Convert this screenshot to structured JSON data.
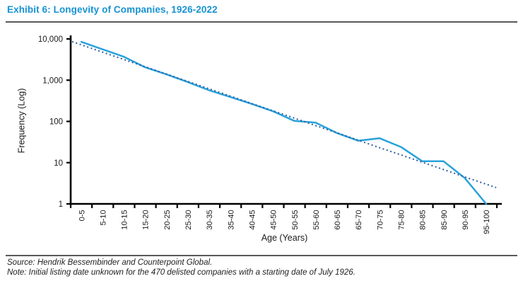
{
  "header": {
    "title": "Exhibit 6: Longevity of Companies, 1926-2022"
  },
  "footer": {
    "source": "Source: Hendrik Bessembinder and Counterpoint Global.",
    "note": "Note: Initial listing date unknown for the 470 delisted companies with a starting date of July 1926."
  },
  "colors": {
    "title": "#1793d3",
    "axis": "#000000",
    "rule": "#595959",
    "text": "#1a1a1a"
  },
  "chart_data": {
    "type": "line",
    "title": "Exhibit 6: Longevity of Companies, 1926-2022",
    "xlabel": "Age (Years)",
    "ylabel": "Frequency (Log)",
    "y_scale": "log",
    "ylim": [
      1,
      10000
    ],
    "grid": false,
    "legend": "none",
    "y_tick_labels": [
      "10,000",
      "1,000",
      "100",
      "10",
      "1"
    ],
    "y_tick_values": [
      10000,
      1000,
      100,
      10,
      1
    ],
    "categories": [
      "0-5",
      "5-10",
      "10-15",
      "15-20",
      "20-25",
      "25-30",
      "30-35",
      "35-40",
      "40-45",
      "45-50",
      "50-55",
      "55-60",
      "60-65",
      "65-70",
      "70-75",
      "75-80",
      "80-85",
      "85-90",
      "90-95",
      "95-100"
    ],
    "series": [
      {
        "name": "frequency",
        "style": "solid",
        "color": "#29a2db",
        "values": [
          8500,
          5600,
          3700,
          2050,
          1380,
          900,
          570,
          390,
          265,
          176,
          103,
          93,
          52,
          34,
          39,
          24,
          10.8,
          10.8,
          4.2,
          1
        ]
      },
      {
        "name": "exponential-trend",
        "style": "dotted",
        "color": "#2d5fa0",
        "extends_to_axis": true,
        "values": [
          7200,
          4780,
          3170,
          2110,
          1400,
          930,
          615,
          410,
          271,
          180,
          120,
          79,
          53,
          35,
          23,
          15.4,
          10.2,
          6.8,
          4.5,
          3.0
        ]
      }
    ]
  }
}
